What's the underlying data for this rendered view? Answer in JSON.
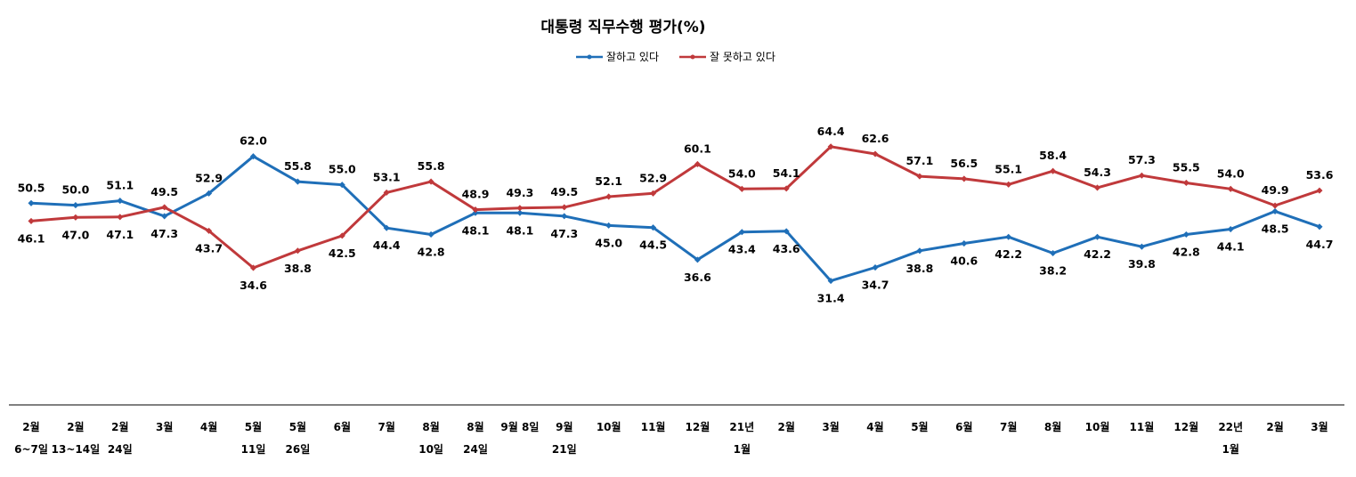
{
  "chart_data": {
    "type": "line",
    "title": "대통령 직무수행 평가(%)",
    "categories": [
      [
        "2월",
        "6~7일"
      ],
      [
        "2월",
        "13~14일"
      ],
      [
        "2월",
        "24일"
      ],
      [
        "3월"
      ],
      [
        "4월"
      ],
      [
        "5월",
        "11일"
      ],
      [
        "5월",
        "26일"
      ],
      [
        "6월"
      ],
      [
        "7월"
      ],
      [
        "8월",
        "10일"
      ],
      [
        "8월",
        "24일"
      ],
      [
        "9월 8일"
      ],
      [
        "9월",
        "21일"
      ],
      [
        "10월"
      ],
      [
        "11월"
      ],
      [
        "12월"
      ],
      [
        "21년",
        "1월"
      ],
      [
        "2월"
      ],
      [
        "3월"
      ],
      [
        "4월"
      ],
      [
        "5월"
      ],
      [
        "6월"
      ],
      [
        "7월"
      ],
      [
        "8월"
      ],
      [
        "10월"
      ],
      [
        "11월"
      ],
      [
        "12월"
      ],
      [
        "22년",
        "1월"
      ],
      [
        "2월"
      ],
      [
        "3월"
      ]
    ],
    "series": [
      {
        "name": "잘하고 있다",
        "color": "#1F6FB8",
        "values": [
          50.5,
          50.0,
          51.1,
          47.3,
          52.9,
          62.0,
          55.8,
          55.0,
          44.4,
          42.8,
          48.1,
          48.1,
          47.3,
          45.0,
          44.5,
          36.6,
          43.4,
          43.6,
          31.4,
          34.7,
          38.8,
          40.6,
          42.2,
          38.2,
          42.2,
          39.8,
          42.8,
          44.1,
          48.5,
          44.7
        ],
        "labels": [
          "50.5",
          "50.0",
          "51.1",
          "47.3",
          "52.9",
          "62.0",
          "55.8",
          "55.0",
          "44.4",
          "42.8",
          "48.1",
          "48.1",
          "47.3",
          "45.0",
          "44.5",
          "36.6",
          "43.4",
          "43.6",
          "31.4",
          "34.7",
          "38.8",
          "40.6",
          "42.2",
          "38.2",
          "42.2",
          "39.8",
          "42.8",
          "44.1",
          "48.5",
          "44.7"
        ]
      },
      {
        "name": "잘 못하고 있다",
        "color": "#C0393B",
        "values": [
          46.1,
          47.0,
          47.1,
          49.5,
          43.7,
          34.6,
          38.8,
          42.5,
          53.1,
          55.8,
          48.9,
          49.3,
          49.5,
          52.1,
          52.9,
          60.1,
          54.0,
          54.1,
          64.4,
          62.6,
          57.1,
          56.5,
          55.1,
          58.4,
          54.3,
          57.3,
          55.5,
          54.0,
          49.9,
          53.6
        ],
        "labels": [
          "46.1",
          "47.0",
          "47.1",
          "49.5",
          "43.7",
          "34.6",
          "38.8",
          "42.5",
          "53.1",
          "55.8",
          "48.9",
          "49.3",
          "49.5",
          "52.1",
          "52.9",
          "60.1",
          "54.0",
          "54.1",
          "64.4",
          "62.6",
          "57.1",
          "56.5",
          "55.1",
          "58.4",
          "54.3",
          "57.3",
          "55.5",
          "54.0",
          "49.9",
          "53.6"
        ]
      }
    ],
    "legend_position": "top-center",
    "grid": false
  }
}
